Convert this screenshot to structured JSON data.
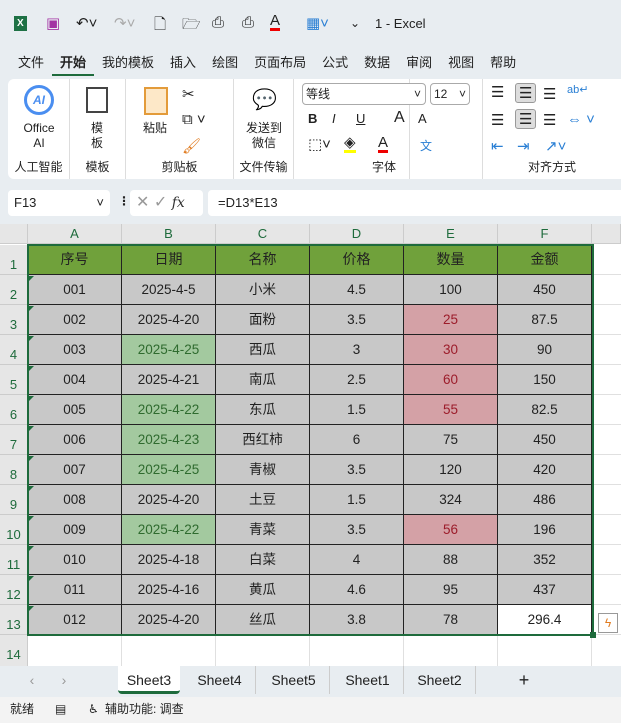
{
  "window": {
    "title": "1  -  Excel"
  },
  "qat": {
    "icons": [
      "excel-logo",
      "save-icon",
      "undo-icon",
      "redo-icon",
      "new-icon",
      "open-icon",
      "print-preview-icon",
      "print-icon",
      "font-color-icon",
      "table-icon",
      "customize-icon"
    ]
  },
  "menu": [
    "文件",
    "开始",
    "我的模板",
    "插入",
    "绘图",
    "页面布局",
    "公式",
    "数据",
    "审阅",
    "视图",
    "帮助"
  ],
  "menu_active": "开始",
  "ribbon": {
    "ai": {
      "button": "Office AI",
      "group": "人工智能"
    },
    "template": {
      "button": "模板",
      "group": "模板"
    },
    "clipboard": {
      "paste": "粘贴",
      "group": "剪贴板"
    },
    "wechat": {
      "button": "发送到微信",
      "group": "文件传输"
    },
    "font": {
      "name": "等线",
      "size": "12",
      "bold": "B",
      "italic": "I",
      "underline": "U",
      "grow": "A",
      "shrink": "A",
      "color": "A",
      "phonetic": "文",
      "group": "字体"
    },
    "align": {
      "group": "对齐方式"
    }
  },
  "formula_bar": {
    "name_box": "F13",
    "formula": "=D13*E13",
    "fx": "fx"
  },
  "columns": [
    "A",
    "B",
    "C",
    "D",
    "E",
    "F"
  ],
  "rows": [
    "1",
    "2",
    "3",
    "4",
    "5",
    "6",
    "7",
    "8",
    "9",
    "10",
    "11",
    "12",
    "13",
    "14"
  ],
  "table": {
    "headers": [
      "序号",
      "日期",
      "名称",
      "价格",
      "数量",
      "金额"
    ],
    "body": [
      [
        "001",
        "2025-4-5",
        "小米",
        "4.5",
        "100",
        "450"
      ],
      [
        "002",
        "2025-4-20",
        "面粉",
        "3.5",
        "25",
        "87.5"
      ],
      [
        "003",
        "2025-4-25",
        "西瓜",
        "3",
        "30",
        "90"
      ],
      [
        "004",
        "2025-4-21",
        "南瓜",
        "2.5",
        "60",
        "150"
      ],
      [
        "005",
        "2025-4-22",
        "东瓜",
        "1.5",
        "55",
        "82.5"
      ],
      [
        "006",
        "2025-4-23",
        "西红柿",
        "6",
        "75",
        "450"
      ],
      [
        "007",
        "2025-4-25",
        "青椒",
        "3.5",
        "120",
        "420"
      ],
      [
        "008",
        "2025-4-20",
        "土豆",
        "1.5",
        "324",
        "486"
      ],
      [
        "009",
        "2025-4-22",
        "青菜",
        "3.5",
        "56",
        "196"
      ],
      [
        "010",
        "2025-4-18",
        "白菜",
        "4",
        "88",
        "352"
      ],
      [
        "011",
        "2025-4-16",
        "黄瓜",
        "4.6",
        "95",
        "437"
      ],
      [
        "012",
        "2025-4-20",
        "丝瓜",
        "3.8",
        "78",
        "296.4"
      ]
    ],
    "green_date_rows": [
      2,
      4,
      5,
      6,
      8
    ],
    "pink_qty_rows": [
      1,
      2,
      3,
      4,
      8
    ]
  },
  "colors": {
    "header": "#70a13b",
    "cell": "#c8c8c8",
    "green": "#a3c99f",
    "pink": "#d4a1a6",
    "accent": "#1e6b3c"
  },
  "sheets": [
    "Sheet3",
    "Sheet4",
    "Sheet5",
    "Sheet1",
    "Sheet2"
  ],
  "active_sheet": "Sheet3",
  "status": {
    "ready": "就绪",
    "accessibility": "辅助功能: 调查"
  }
}
